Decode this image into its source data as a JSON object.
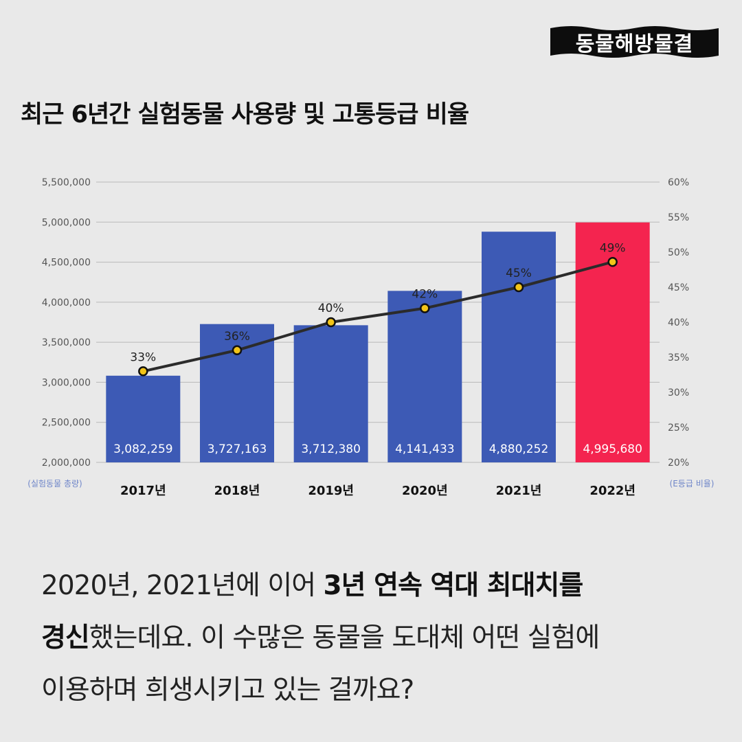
{
  "logo": {
    "text": "동물해방물결"
  },
  "title": "최근 6년간 실험동물 사용량 및 고통등급 비율",
  "chart_data": {
    "type": "bar",
    "title": "최근 6년간 실험동물 사용량 및 고통등급 비율",
    "categories": [
      "2017년",
      "2018년",
      "2019년",
      "2020년",
      "2021년",
      "2022년"
    ],
    "series": [
      {
        "name": "실험동물 총량",
        "type": "bar",
        "axis": "left",
        "values": [
          3082259,
          3727163,
          3712380,
          4141433,
          4880252,
          4995680
        ],
        "labels": [
          "3,082,259",
          "3,727,163",
          "3,712,380",
          "4,141,433",
          "4,880,252",
          "4,995,680"
        ],
        "colors": [
          "#3d5ab5",
          "#3d5ab5",
          "#3d5ab5",
          "#3d5ab5",
          "#3d5ab5",
          "#f4244f"
        ]
      },
      {
        "name": "E등급 비율",
        "type": "line",
        "axis": "right",
        "values": [
          33,
          36,
          40,
          42,
          45,
          48.6
        ],
        "labels": [
          "33%",
          "36%",
          "40%",
          "42%",
          "45%",
          "49%"
        ],
        "color": "#2b2b2b",
        "marker_color": "#f2c419"
      }
    ],
    "left_axis": {
      "label": "(실험동물 총량)",
      "range": [
        2000000,
        5500000
      ],
      "ticks": [
        "2,000,000",
        "2,500,000",
        "3,000,000",
        "3,500,000",
        "4,000,000",
        "4,500,000",
        "5,000,000",
        "5,500,000"
      ]
    },
    "right_axis": {
      "label": "(E등급 비율)",
      "range": [
        20,
        60
      ],
      "ticks": [
        "20%",
        "25%",
        "30%",
        "35%",
        "40%",
        "45%",
        "50%",
        "55%",
        "60%"
      ]
    },
    "grid": true
  },
  "body": {
    "line1_normal": "2020년, 2021년에 이어 ",
    "line1_bold": "3년 연속 역대 최대치를",
    "line2_bold": "경신",
    "line2_normal": "했는데요. 이 수많은 동물을 도대체 어떤 실험에",
    "line3_normal": "이용하며 희생시키고 있는 걸까요?"
  }
}
